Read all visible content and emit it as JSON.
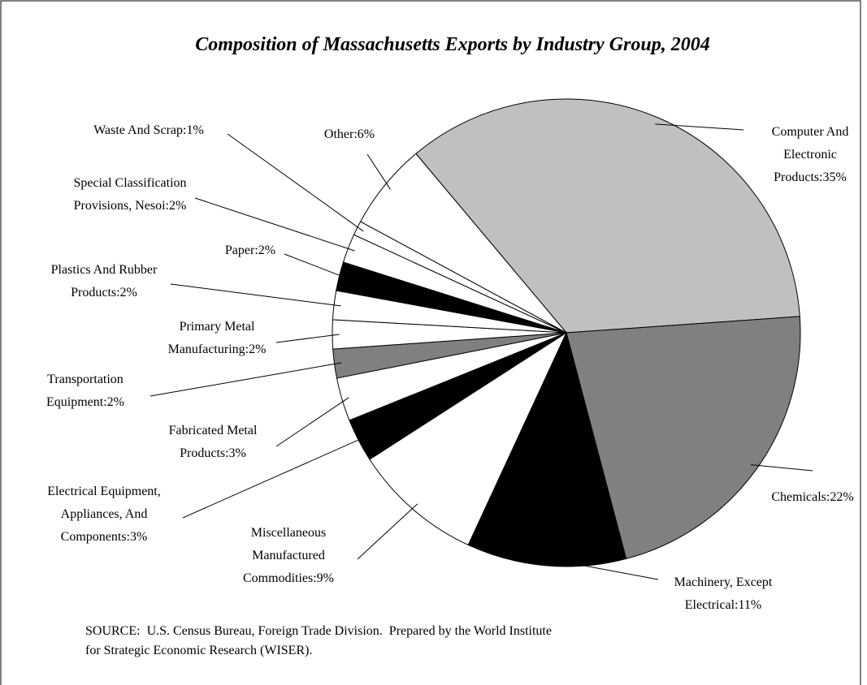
{
  "chart_data": {
    "type": "pie",
    "title": "Composition of Massachusetts Exports by Industry Group, 2004",
    "categories": [
      "Computer And\nElectronic\nProducts:35%",
      "Chemicals:22%",
      "Machinery, Except\nElectrical:11%",
      "Miscellaneous\nManufactured\nCommodities:9%",
      "Electrical Equipment,\nAppliances, And\nComponents:3%",
      "Fabricated Metal\nProducts:3%",
      "Transportation\nEquipment:2%",
      "Primary Metal\nManufacturing:2%",
      "Plastics And Rubber\nProducts:2%",
      "Paper:2%",
      "Special Classification\nProvisions, Nesoi:2%",
      "Waste And Scrap:1%",
      "Other:6%"
    ],
    "values": [
      35,
      22,
      11,
      9,
      3,
      3,
      2,
      2,
      2,
      2,
      2,
      1,
      6
    ],
    "colors": [
      "#c0c0c0",
      "#808080",
      "#000000",
      "#ffffff",
      "#000000",
      "#ffffff",
      "#808080",
      "#ffffff",
      "#ffffff",
      "#000000",
      "#ffffff",
      "#ffffff",
      "#ffffff"
    ],
    "source": [
      "SOURCE:  U.S. Census Bureau, Foreign Trade Division.  Prepared by the World Institute",
      "for Strategic Economic Research (WISER)."
    ]
  }
}
